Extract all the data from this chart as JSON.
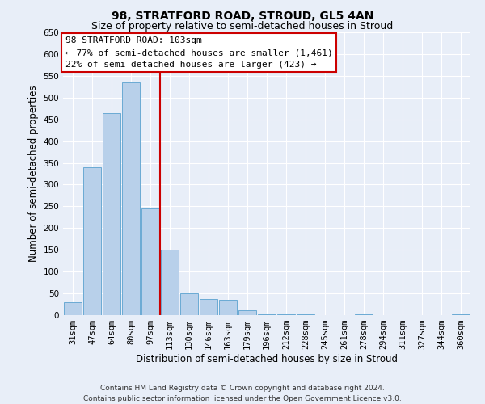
{
  "title": "98, STRATFORD ROAD, STROUD, GL5 4AN",
  "subtitle": "Size of property relative to semi-detached houses in Stroud",
  "xlabel": "Distribution of semi-detached houses by size in Stroud",
  "ylabel": "Number of semi-detached properties",
  "bar_labels": [
    "31sqm",
    "47sqm",
    "64sqm",
    "80sqm",
    "97sqm",
    "113sqm",
    "130sqm",
    "146sqm",
    "163sqm",
    "179sqm",
    "196sqm",
    "212sqm",
    "228sqm",
    "245sqm",
    "261sqm",
    "278sqm",
    "294sqm",
    "311sqm",
    "327sqm",
    "344sqm",
    "360sqm"
  ],
  "bar_values": [
    30,
    340,
    465,
    535,
    245,
    150,
    50,
    38,
    36,
    11,
    2,
    1,
    1,
    0,
    0,
    1,
    0,
    0,
    0,
    0,
    2
  ],
  "bar_color": "#b8d0ea",
  "bar_edge_color": "#6aaad4",
  "vline_color": "#cc0000",
  "ylim": [
    0,
    650
  ],
  "yticks": [
    0,
    50,
    100,
    150,
    200,
    250,
    300,
    350,
    400,
    450,
    500,
    550,
    600,
    650
  ],
  "annotation_title": "98 STRATFORD ROAD: 103sqm",
  "annotation_line1": "← 77% of semi-detached houses are smaller (1,461)",
  "annotation_line2": "22% of semi-detached houses are larger (423) →",
  "annotation_box_color": "#ffffff",
  "annotation_box_edge": "#cc0000",
  "footer_line1": "Contains HM Land Registry data © Crown copyright and database right 2024.",
  "footer_line2": "Contains public sector information licensed under the Open Government Licence v3.0.",
  "background_color": "#e8eef8",
  "grid_color": "#ffffff",
  "title_fontsize": 10,
  "subtitle_fontsize": 9,
  "axis_label_fontsize": 8.5,
  "tick_fontsize": 7.5,
  "annotation_fontsize": 8,
  "footer_fontsize": 6.5
}
